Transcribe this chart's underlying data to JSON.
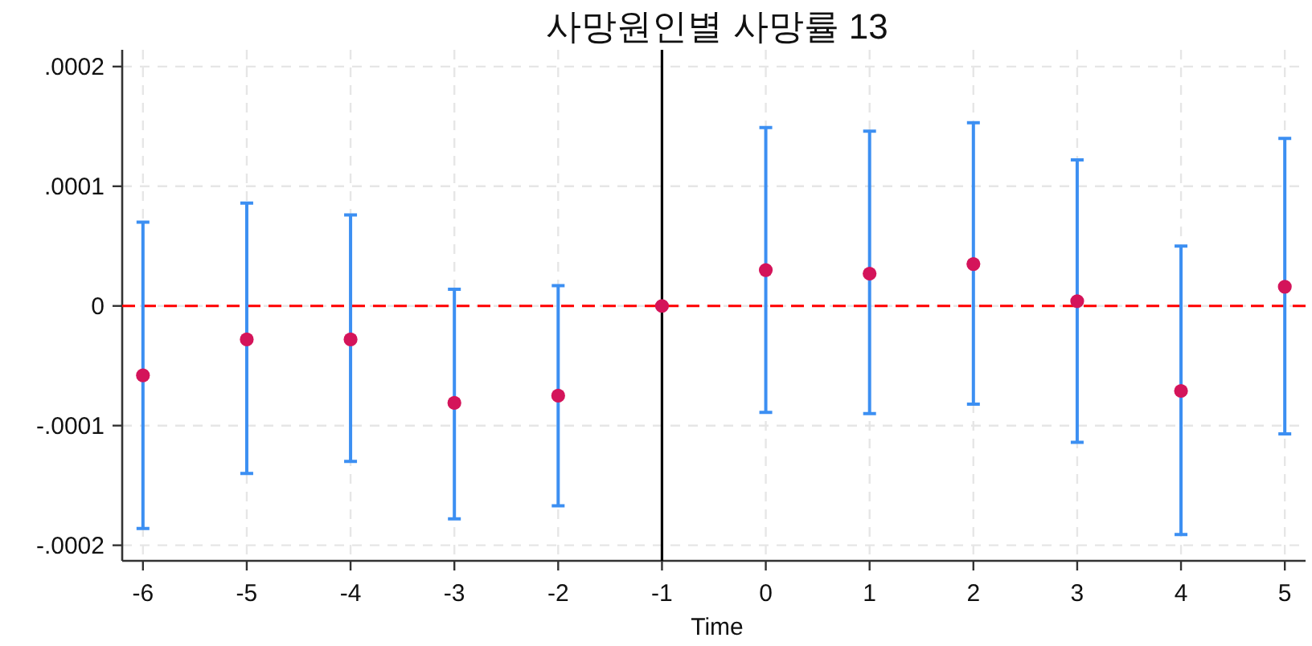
{
  "chart_data": {
    "type": "scatter",
    "title": "사망원인별 사망률 13",
    "xlabel": "Time",
    "x": [
      -6,
      -5,
      -4,
      -3,
      -2,
      -1,
      0,
      1,
      2,
      3,
      4,
      5
    ],
    "series": [
      {
        "color": "#d4145a",
        "values": [
          -5.8e-05,
          -2.8e-05,
          -2.8e-05,
          -8.1e-05,
          -7.5e-05,
          0,
          3e-05,
          2.7e-05,
          3.5e-05,
          4e-06,
          -7.1e-05,
          1.6e-05
        ],
        "errors": [
          [
            -0.000186,
            7e-05
          ],
          [
            -0.00014,
            8.6e-05
          ],
          [
            -0.00013,
            7.6e-05
          ],
          [
            -0.000178,
            1.4e-05
          ],
          [
            -0.000167,
            1.7e-05
          ],
          null,
          [
            -8.9e-05,
            0.000149
          ],
          [
            -9e-05,
            0.000146
          ],
          [
            -8.2e-05,
            0.000153
          ],
          [
            -0.000114,
            0.000122
          ],
          [
            -0.000191,
            5e-05
          ],
          [
            -0.000107,
            0.00014
          ]
        ]
      }
    ],
    "xlim": [
      -6.2,
      5.2
    ],
    "ylim": [
      -0.000213,
      0.000214
    ],
    "xticks": [
      -6,
      -5,
      -4,
      -3,
      -2,
      -1,
      0,
      1,
      2,
      3,
      4,
      5
    ],
    "yticks": [
      {
        "value": -0.0002,
        "label": "-.0002"
      },
      {
        "value": -0.0001,
        "label": "-.0001"
      },
      0,
      {
        "value": 0.0001,
        "label": ".0001"
      },
      {
        "value": 0.0002,
        "label": ".0002"
      }
    ],
    "ref_lines": [
      {
        "axis": "y",
        "value": 0,
        "color": "#ff0000",
        "line_style": "dashed"
      },
      {
        "axis": "x",
        "value": -1,
        "color": "#000000",
        "line_style": "solid"
      }
    ],
    "grid": true,
    "marker": "circle"
  }
}
